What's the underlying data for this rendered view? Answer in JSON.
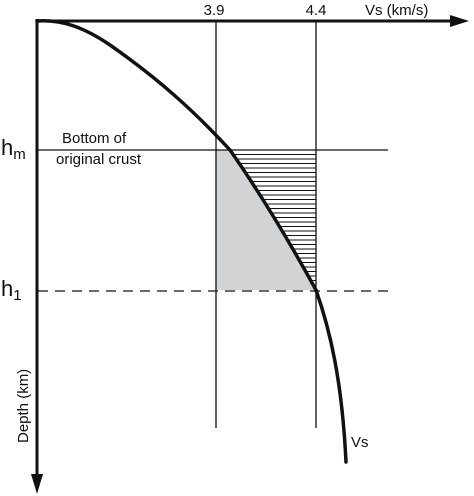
{
  "axes": {
    "x_label": "Vs (km/s)",
    "y_label": "Depth (km)",
    "x_ticks": [
      "3.9",
      "4.4"
    ]
  },
  "depth_marks": {
    "hm": {
      "main": "h",
      "sub": "m"
    },
    "h1": {
      "main": "h",
      "sub": "1"
    }
  },
  "annotation": {
    "line1": "Bottom of",
    "line2": "original crust"
  },
  "curve_label": "Vs",
  "colors": {
    "ink": "#111111",
    "shaded_region": "#d2d3d5",
    "background": "#ffffff"
  }
}
